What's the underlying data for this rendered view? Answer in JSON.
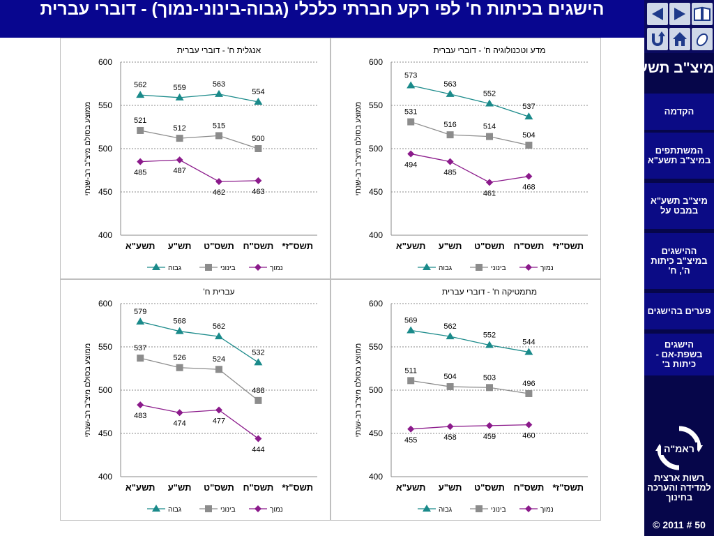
{
  "header": {
    "title": "הישגים בכיתות ח' לפי רקע חברתי כלכלי (גבוה-בינוני-נמוך) - דוברי עברית"
  },
  "sidebar": {
    "heading": "מיצ\"ב תשע\"א",
    "items": [
      {
        "label": "הקדמה"
      },
      {
        "label": "המשתתפים במיצ\"ב תשע\"א"
      },
      {
        "label": "מיצ\"ב תשע\"א במבט על"
      },
      {
        "label": "ההישגים במיצ\"ב כיתות ה', ח'"
      },
      {
        "label": "פערים בהישגים"
      },
      {
        "label": "הישגים בשפת-אם - כיתות ב'"
      }
    ],
    "logo_text": "ראמ\"ה",
    "org_name": "רשות ארצית למדידה והערכה בחינוך",
    "footer": "© 2011 # 50",
    "icons": [
      "back-arrow-icon",
      "forward-arrow-icon",
      "book-icon",
      "return-icon",
      "home-icon",
      "mouse-icon"
    ]
  },
  "chart_data": [
    {
      "id": "english",
      "type": "line",
      "title": "אנגלית ח' - דוברי עברית",
      "ylabel": "ממוצע בסולם מיצ\"ב רב-שנתי",
      "ylim": [
        400,
        600
      ],
      "yticks": [
        400,
        450,
        500,
        550,
        600
      ],
      "grid": true,
      "legend_position": "bottom",
      "categories": [
        "תשס\"ז*",
        "תשס\"ח",
        "תשס\"ט",
        "תש\"ע",
        "תשע\"א"
      ],
      "series": [
        {
          "name": "נמוך",
          "marker": "diamond",
          "color": "#8b1a8b",
          "values": [
            null,
            463,
            462,
            487,
            485
          ]
        },
        {
          "name": "בינוני",
          "marker": "square",
          "color": "#8c8c8c",
          "values": [
            null,
            500,
            515,
            512,
            521
          ]
        },
        {
          "name": "גבוה",
          "marker": "triangle",
          "color": "#1a8a8a",
          "values": [
            null,
            554,
            563,
            559,
            562
          ]
        }
      ]
    },
    {
      "id": "science",
      "type": "line",
      "title": "מדע וטכנולוגיה ח' - דוברי עברית",
      "ylabel": "ממוצע בסולם מיצ\"ב רב-שנתי",
      "ylim": [
        400,
        600
      ],
      "yticks": [
        400,
        450,
        500,
        550,
        600
      ],
      "grid": true,
      "legend_position": "bottom",
      "categories": [
        "תשס\"ז*",
        "תשס\"ח",
        "תשס\"ט",
        "תש\"ע",
        "תשע\"א"
      ],
      "series": [
        {
          "name": "נמוך",
          "marker": "diamond",
          "color": "#8b1a8b",
          "values": [
            null,
            468,
            461,
            485,
            494
          ]
        },
        {
          "name": "בינוני",
          "marker": "square",
          "color": "#8c8c8c",
          "values": [
            null,
            504,
            514,
            516,
            531
          ]
        },
        {
          "name": "גבוה",
          "marker": "triangle",
          "color": "#1a8a8a",
          "values": [
            null,
            537,
            552,
            563,
            573
          ]
        }
      ]
    },
    {
      "id": "hebrew",
      "type": "line",
      "title": "עברית ח'",
      "ylabel": "ממוצע בסולם מיצ\"ב רב-שנתי",
      "ylim": [
        400,
        600
      ],
      "yticks": [
        400,
        450,
        500,
        550,
        600
      ],
      "grid": true,
      "legend_position": "bottom",
      "categories": [
        "תשס\"ז*",
        "תשס\"ח",
        "תשס\"ט",
        "תש\"ע",
        "תשע\"א"
      ],
      "series": [
        {
          "name": "נמוך",
          "marker": "diamond",
          "color": "#8b1a8b",
          "values": [
            null,
            444,
            477,
            474,
            483
          ]
        },
        {
          "name": "בינוני",
          "marker": "square",
          "color": "#8c8c8c",
          "values": [
            null,
            488,
            524,
            526,
            537
          ]
        },
        {
          "name": "גבוה",
          "marker": "triangle",
          "color": "#1a8a8a",
          "values": [
            null,
            532,
            562,
            568,
            579
          ]
        }
      ]
    },
    {
      "id": "math",
      "type": "line",
      "title": "מתמטיקה ח' - דוברי עברית",
      "ylabel": "ממוצע בסולם מיצ\"ב רב-שנתי",
      "ylim": [
        400,
        600
      ],
      "yticks": [
        400,
        450,
        500,
        550,
        600
      ],
      "grid": true,
      "legend_position": "bottom",
      "categories": [
        "תשס\"ז*",
        "תשס\"ח",
        "תשס\"ט",
        "תש\"ע",
        "תשע\"א"
      ],
      "series": [
        {
          "name": "נמוך",
          "marker": "diamond",
          "color": "#8b1a8b",
          "values": [
            null,
            460,
            459,
            458,
            455
          ]
        },
        {
          "name": "בינוני",
          "marker": "square",
          "color": "#8c8c8c",
          "values": [
            null,
            496,
            503,
            504,
            511
          ]
        },
        {
          "name": "גבוה",
          "marker": "triangle",
          "color": "#1a8a8a",
          "values": [
            null,
            544,
            552,
            562,
            569
          ]
        }
      ]
    }
  ]
}
